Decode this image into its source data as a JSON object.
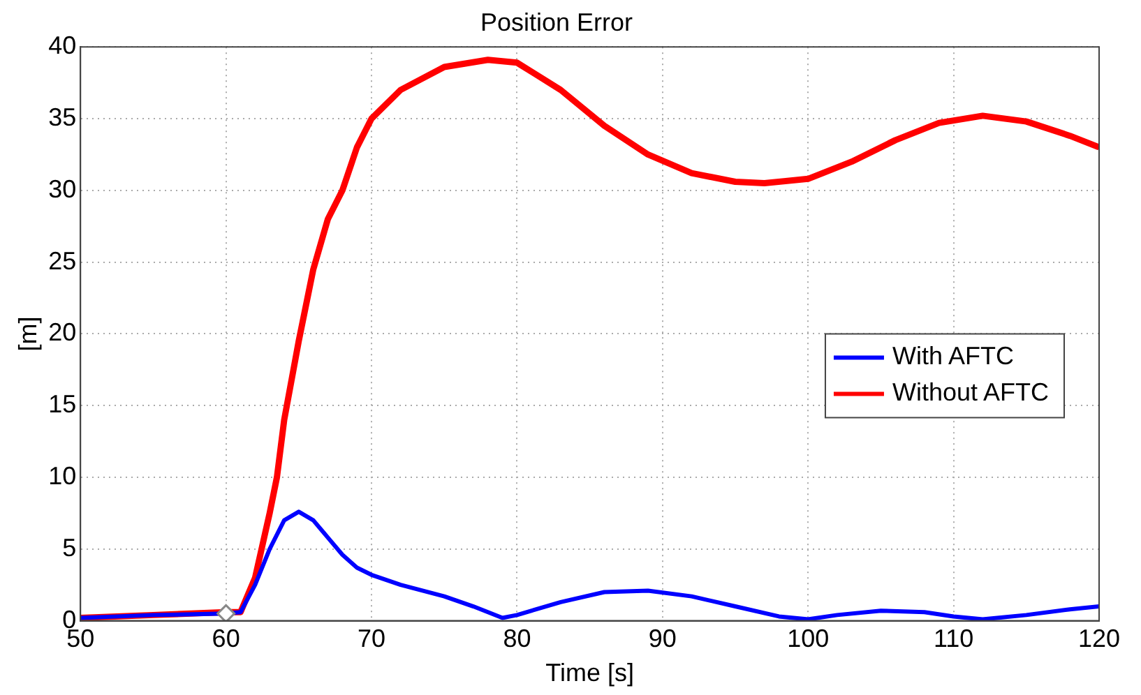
{
  "chart_data": {
    "type": "line",
    "title": "Position Error",
    "xlabel": "Time [s]",
    "ylabel": "[m]",
    "xlim": [
      50,
      120
    ],
    "xticks": [
      50,
      60,
      70,
      80,
      90,
      100,
      110,
      120
    ],
    "ylim": [
      0,
      40
    ],
    "yticks": [
      0,
      5,
      10,
      15,
      20,
      25,
      30,
      35,
      40
    ],
    "grid": true,
    "legend": "right",
    "marker": "none",
    "line_style": "solid",
    "series": [
      {
        "name": "With AFTC",
        "color": "#0000ff",
        "x": [
          50,
          55,
          60,
          61,
          62,
          63,
          64,
          65,
          66,
          67,
          68,
          69,
          70,
          72,
          75,
          77,
          79,
          80,
          83,
          86,
          89,
          92,
          95,
          98,
          100,
          102,
          105,
          108,
          110,
          112,
          115,
          118,
          120
        ],
        "values": [
          0.2,
          0.4,
          0.5,
          0.6,
          2.5,
          5,
          7,
          7.6,
          7,
          5.8,
          4.6,
          3.7,
          3.2,
          2.5,
          1.7,
          1,
          0.2,
          0.4,
          1.3,
          2,
          2.1,
          1.7,
          1,
          0.3,
          0.1,
          0.4,
          0.7,
          0.6,
          0.3,
          0.1,
          0.4,
          0.8,
          1
        ]
      },
      {
        "name": "Without AFTC",
        "color": "#ff0000",
        "x": [
          50,
          55,
          60,
          61,
          62,
          63,
          63.5,
          64,
          65,
          66,
          67,
          68,
          69,
          70,
          72,
          75,
          78,
          80,
          83,
          86,
          89,
          92,
          95,
          97,
          100,
          103,
          106,
          109,
          112,
          115,
          118,
          120
        ],
        "values": [
          0.2,
          0.4,
          0.6,
          0.6,
          3,
          7.5,
          10,
          14,
          19.5,
          24.5,
          28,
          30,
          33,
          35,
          37,
          38.6,
          39.1,
          38.9,
          37,
          34.5,
          32.5,
          31.2,
          30.6,
          30.5,
          30.8,
          32,
          33.5,
          34.7,
          35.2,
          34.8,
          33.8,
          33
        ]
      },
      {
        "type": "scatter",
        "color": "#ffffff",
        "marker": "diamond",
        "x": [
          60
        ],
        "values": [
          0.5
        ]
      }
    ]
  }
}
